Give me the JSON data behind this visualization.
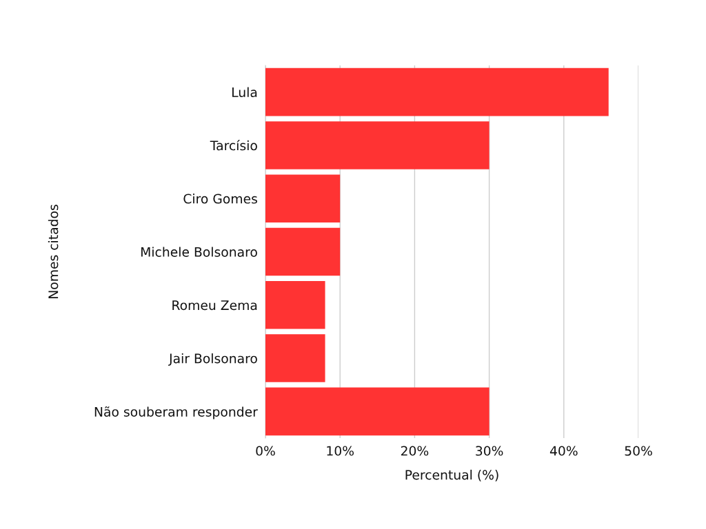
{
  "chart_data": {
    "type": "bar",
    "orientation": "horizontal",
    "xlabel": "Percentual (%)",
    "ylabel": "Nomes citados",
    "categories": [
      "Lula",
      "Tarcísio",
      "Ciro Gomes",
      "Michele Bolsonaro",
      "Romeu Zema",
      "Jair Bolsonaro",
      "Não souberam responder"
    ],
    "values": [
      46,
      30,
      10,
      10,
      8,
      8,
      30
    ],
    "color": "#ff3333",
    "xlim": [
      0,
      50
    ],
    "xticks": [
      {
        "value": 0,
        "label": "0%"
      },
      {
        "value": 10,
        "label": "10%"
      },
      {
        "value": 20,
        "label": "20%"
      },
      {
        "value": 30,
        "label": "30%"
      },
      {
        "value": 40,
        "label": "40%"
      },
      {
        "value": 50,
        "label": "50%"
      }
    ],
    "grid": "x"
  }
}
